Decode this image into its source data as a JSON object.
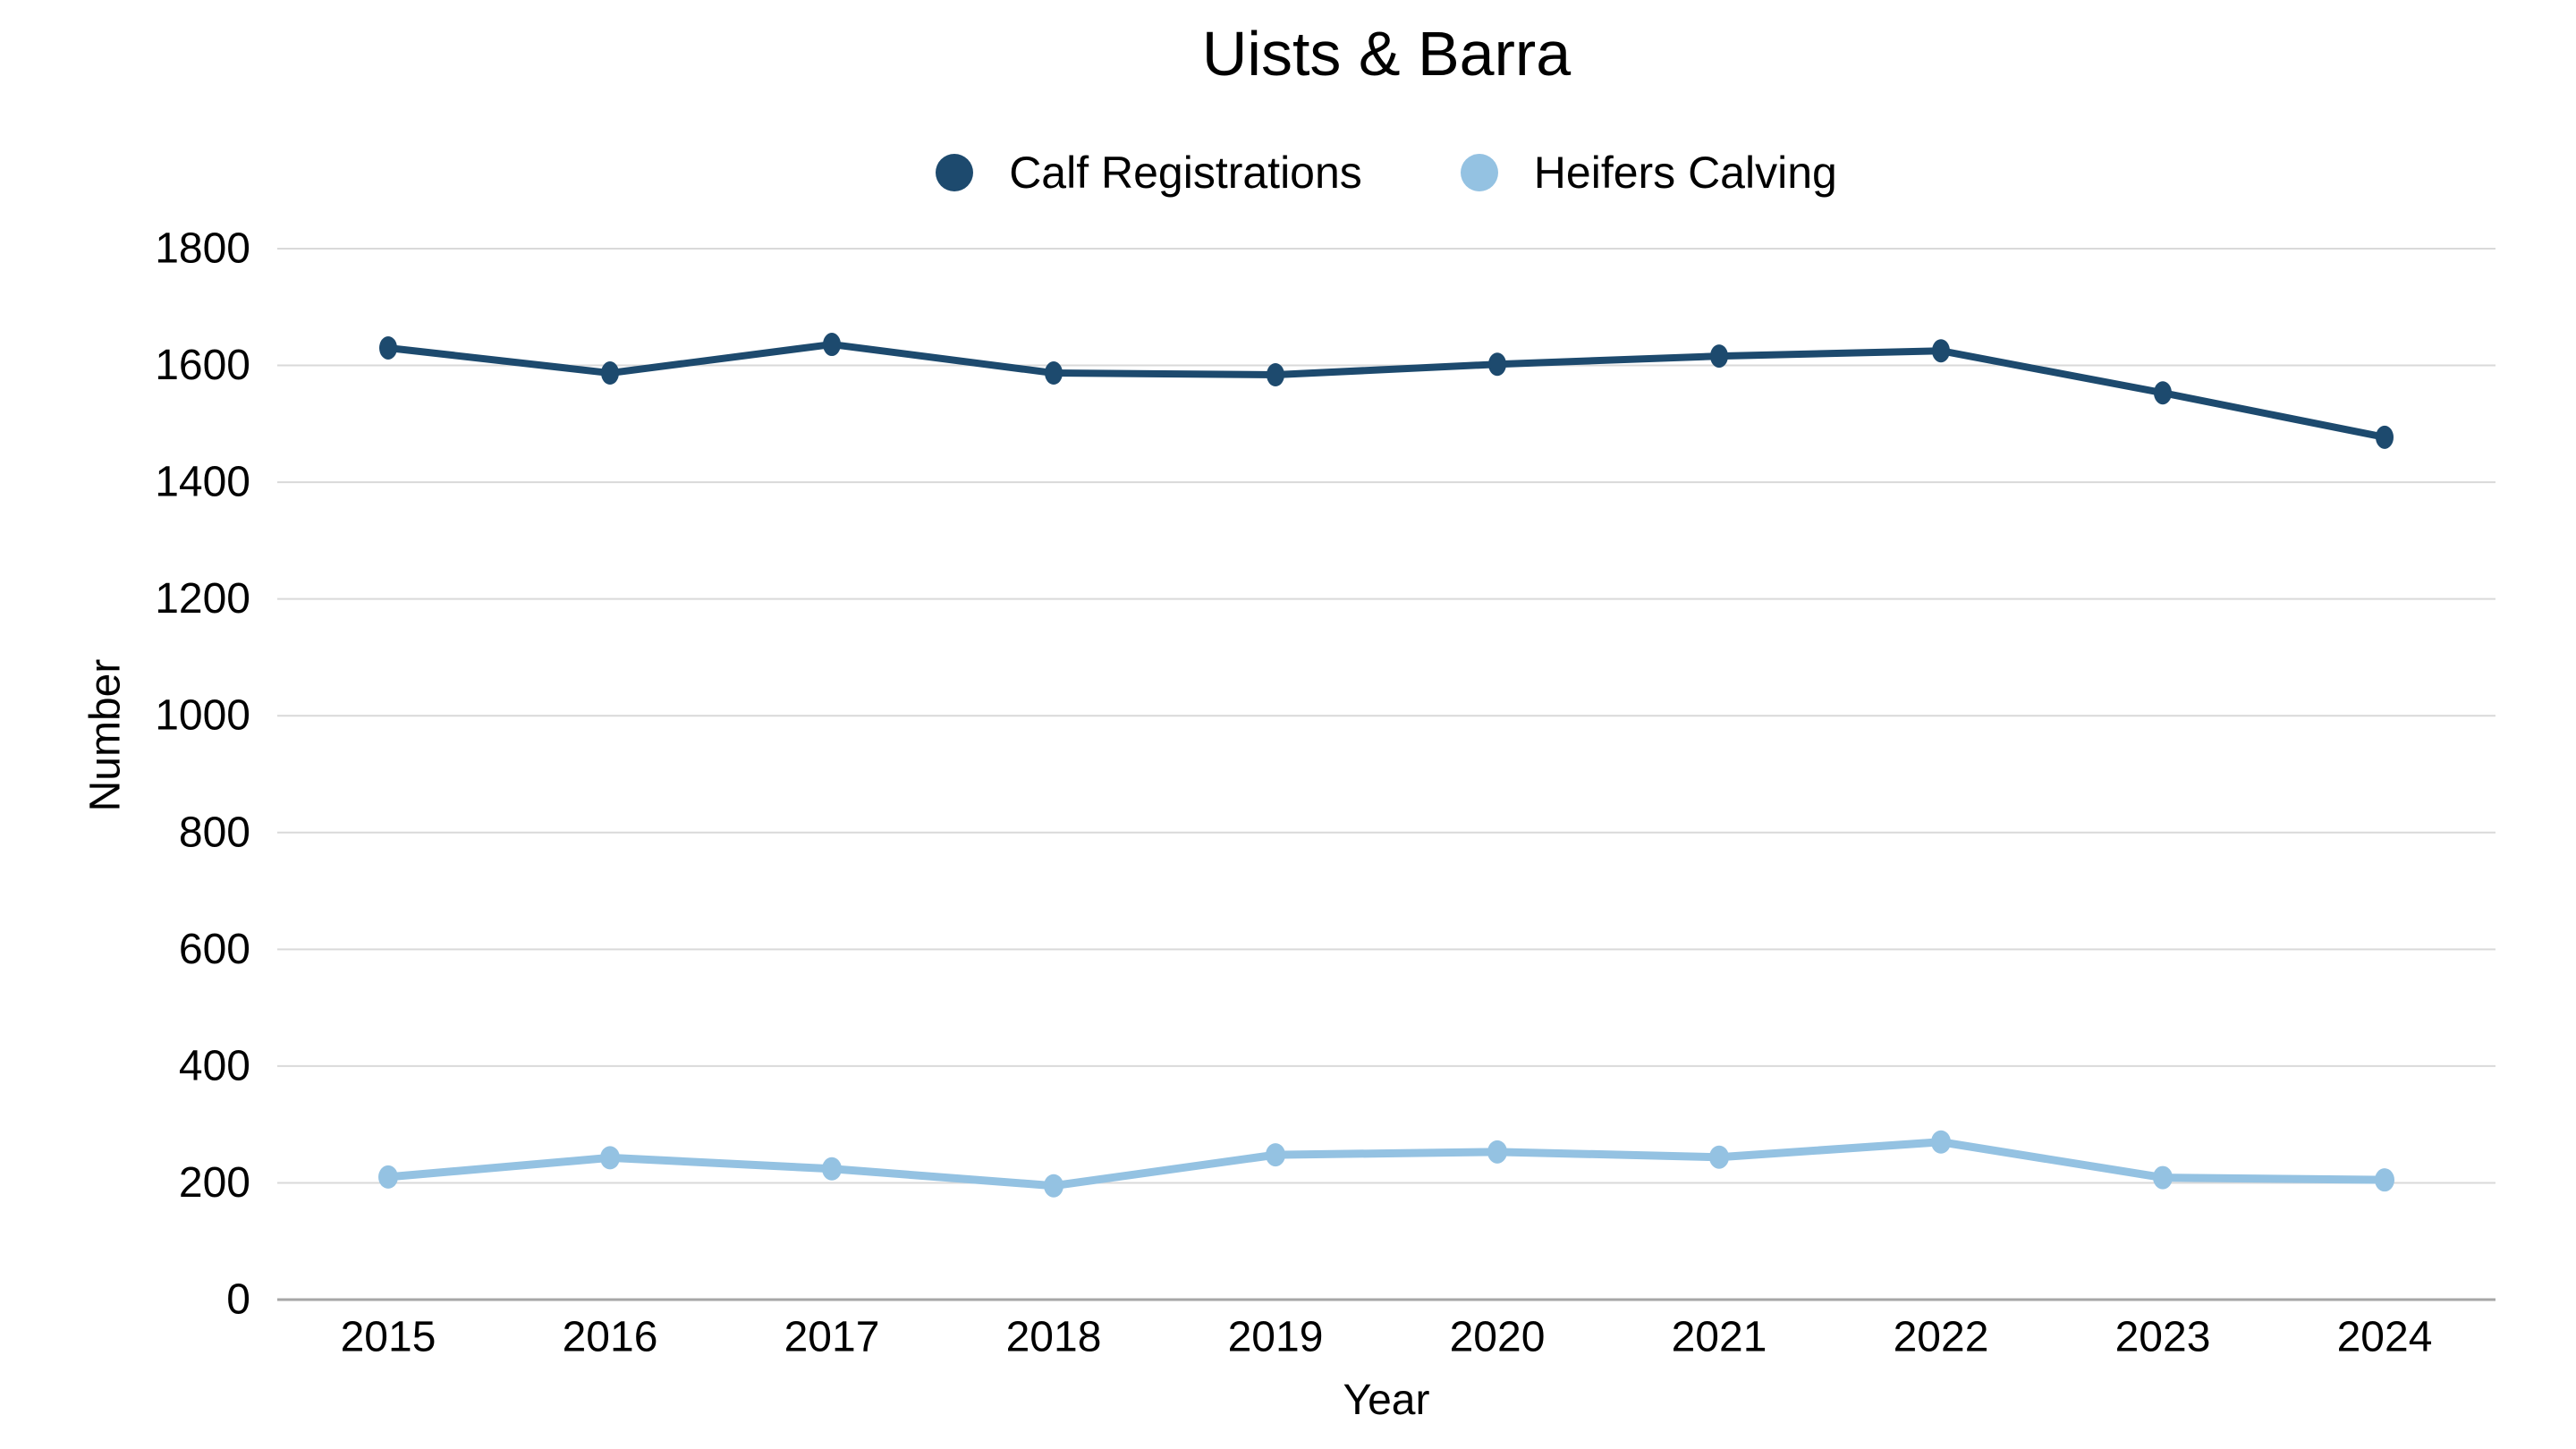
{
  "title": "Uists & Barra",
  "axis": {
    "x_title": "Year",
    "y_title": "Number"
  },
  "colors": {
    "calf_registrations": "#1d4a6e",
    "heifers_calving": "#94c2e2",
    "gridline": "#d9d9d9",
    "axis_line": "#a6a6a6",
    "text": "#000000",
    "background": "#ffffff"
  },
  "chart_data": {
    "type": "line",
    "title": "Uists & Barra",
    "xlabel": "Year",
    "ylabel": "Number",
    "categories": [
      "2015",
      "2016",
      "2017",
      "2018",
      "2019",
      "2020",
      "2021",
      "2022",
      "2023",
      "2024"
    ],
    "series": [
      {
        "name": "Calf Registrations",
        "color": "#1d4a6e",
        "values": [
          1630,
          1587,
          1636,
          1587,
          1584,
          1602,
          1616,
          1625,
          1553,
          1477
        ]
      },
      {
        "name": "Heifers Calving",
        "color": "#94c2e2",
        "values": [
          210,
          243,
          224,
          195,
          248,
          253,
          244,
          270,
          209,
          205
        ]
      }
    ],
    "ylim": [
      0,
      1800
    ],
    "ytick_step": 200,
    "yticks": [
      0,
      200,
      400,
      600,
      800,
      1000,
      1200,
      1400,
      1600,
      1800
    ],
    "grid": true,
    "legend_position": "top-center",
    "marker": "circle"
  }
}
